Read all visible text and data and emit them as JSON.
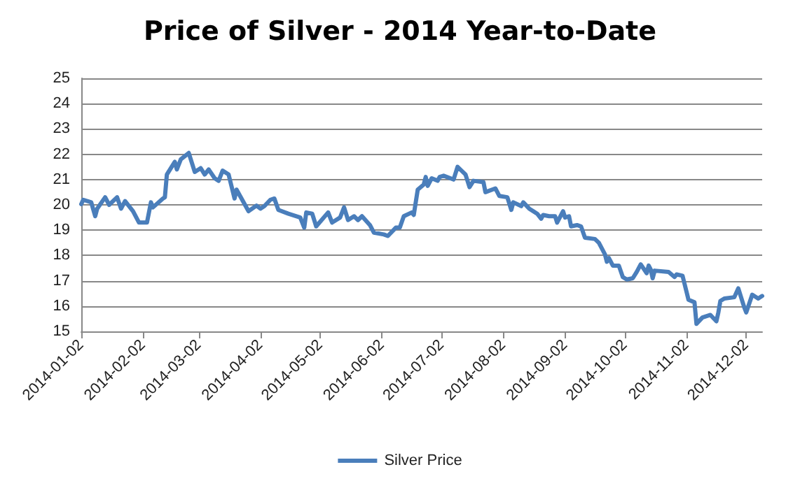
{
  "chart_data": {
    "type": "line",
    "title": "Price of Silver - 2014 Year-to-Date",
    "x": [
      "2014-01-02",
      "2014-01-03",
      "2014-01-07",
      "2014-01-09",
      "2014-01-10",
      "2014-01-14",
      "2014-01-16",
      "2014-01-20",
      "2014-01-22",
      "2014-01-24",
      "2014-01-28",
      "2014-01-31",
      "2014-02-04",
      "2014-02-06",
      "2014-02-07",
      "2014-02-12",
      "2014-02-13",
      "2014-02-14",
      "2014-02-18",
      "2014-02-19",
      "2014-02-21",
      "2014-02-25",
      "2014-02-28",
      "2014-03-03",
      "2014-03-05",
      "2014-03-07",
      "2014-03-10",
      "2014-03-12",
      "2014-03-14",
      "2014-03-17",
      "2014-03-20",
      "2014-03-21",
      "2014-03-27",
      "2014-03-31",
      "2014-04-02",
      "2014-04-04",
      "2014-04-07",
      "2014-04-09",
      "2014-04-11",
      "2014-04-16",
      "2014-04-22",
      "2014-04-24",
      "2014-04-25",
      "2014-04-28",
      "2014-04-30",
      "2014-05-06",
      "2014-05-08",
      "2014-05-12",
      "2014-05-14",
      "2014-05-16",
      "2014-05-19",
      "2014-05-21",
      "2014-05-23",
      "2014-05-27",
      "2014-05-29",
      "2014-06-03",
      "2014-06-05",
      "2014-06-09",
      "2014-06-11",
      "2014-06-13",
      "2014-06-17",
      "2014-06-18",
      "2014-06-20",
      "2014-06-23",
      "2014-06-24",
      "2014-06-25",
      "2014-06-27",
      "2014-06-30",
      "2014-07-01",
      "2014-07-03",
      "2014-07-08",
      "2014-07-10",
      "2014-07-14",
      "2014-07-16",
      "2014-07-18",
      "2014-07-23",
      "2014-07-24",
      "2014-07-29",
      "2014-07-31",
      "2014-08-04",
      "2014-08-06",
      "2014-08-07",
      "2014-08-11",
      "2014-08-12",
      "2014-08-15",
      "2014-08-19",
      "2014-08-21",
      "2014-08-22",
      "2014-08-25",
      "2014-08-28",
      "2014-08-29",
      "2014-09-01",
      "2014-09-02",
      "2014-09-04",
      "2014-09-05",
      "2014-09-08",
      "2014-09-10",
      "2014-09-12",
      "2014-09-17",
      "2014-09-19",
      "2014-09-22",
      "2014-09-23",
      "2014-09-24",
      "2014-09-26",
      "2014-09-29",
      "2014-10-01",
      "2014-10-03",
      "2014-10-06",
      "2014-10-08",
      "2014-10-10",
      "2014-10-13",
      "2014-10-14",
      "2014-10-15",
      "2014-10-16",
      "2014-10-17",
      "2014-10-24",
      "2014-10-27",
      "2014-10-28",
      "2014-10-31",
      "2014-11-03",
      "2014-11-06",
      "2014-11-07",
      "2014-11-10",
      "2014-11-14",
      "2014-11-17",
      "2014-11-18",
      "2014-11-19",
      "2014-11-21",
      "2014-11-26",
      "2014-11-28",
      "2014-12-01",
      "2014-12-02",
      "2014-12-05",
      "2014-12-08",
      "2014-12-10"
    ],
    "series": [
      {
        "name": "Silver Price",
        "color": "#4a7ebb",
        "values": [
          20.03,
          20.2,
          20.1,
          19.55,
          19.85,
          20.3,
          20.0,
          20.3,
          19.85,
          20.15,
          19.75,
          19.3,
          19.3,
          20.1,
          19.9,
          20.25,
          20.3,
          21.2,
          21.7,
          21.4,
          21.8,
          22.05,
          21.3,
          21.45,
          21.2,
          21.4,
          21.05,
          20.95,
          21.35,
          21.2,
          20.25,
          20.6,
          19.75,
          19.97,
          19.85,
          19.95,
          20.2,
          20.25,
          19.8,
          19.65,
          19.5,
          19.1,
          19.7,
          19.65,
          19.15,
          19.7,
          19.3,
          19.5,
          19.9,
          19.4,
          19.55,
          19.4,
          19.55,
          19.2,
          18.9,
          18.83,
          18.77,
          19.1,
          19.1,
          19.55,
          19.7,
          19.6,
          20.6,
          20.8,
          21.1,
          20.75,
          21.05,
          20.95,
          21.1,
          21.15,
          21.0,
          21.5,
          21.2,
          20.7,
          20.95,
          20.9,
          20.5,
          20.65,
          20.35,
          20.3,
          19.8,
          20.1,
          19.95,
          20.1,
          19.85,
          19.65,
          19.45,
          19.6,
          19.55,
          19.55,
          19.3,
          19.75,
          19.5,
          19.55,
          19.15,
          19.2,
          19.15,
          18.7,
          18.65,
          18.5,
          18.05,
          17.75,
          17.9,
          17.6,
          17.6,
          17.15,
          17.05,
          17.1,
          17.35,
          17.65,
          17.3,
          17.6,
          17.45,
          17.1,
          17.4,
          17.35,
          17.15,
          17.25,
          17.2,
          16.25,
          16.15,
          15.3,
          15.55,
          15.65,
          15.4,
          15.75,
          16.2,
          16.3,
          16.35,
          16.7,
          15.95,
          15.75,
          16.45,
          16.3,
          16.4
        ]
      }
    ],
    "xlim": [
      "2014-01-02",
      "2014-12-10"
    ],
    "xticks": [
      "2014-01-02",
      "2014-02-02",
      "2014-03-02",
      "2014-04-02",
      "2014-05-02",
      "2014-06-02",
      "2014-07-02",
      "2014-08-02",
      "2014-09-02",
      "2014-10-02",
      "2014-11-02",
      "2014-12-02"
    ],
    "ylim": [
      15,
      25
    ],
    "yticks": [
      15,
      16,
      17,
      18,
      19,
      20,
      21,
      22,
      23,
      24,
      25
    ],
    "grid": "y",
    "legend": "bottom",
    "marker": "none",
    "line_style": "solid"
  }
}
